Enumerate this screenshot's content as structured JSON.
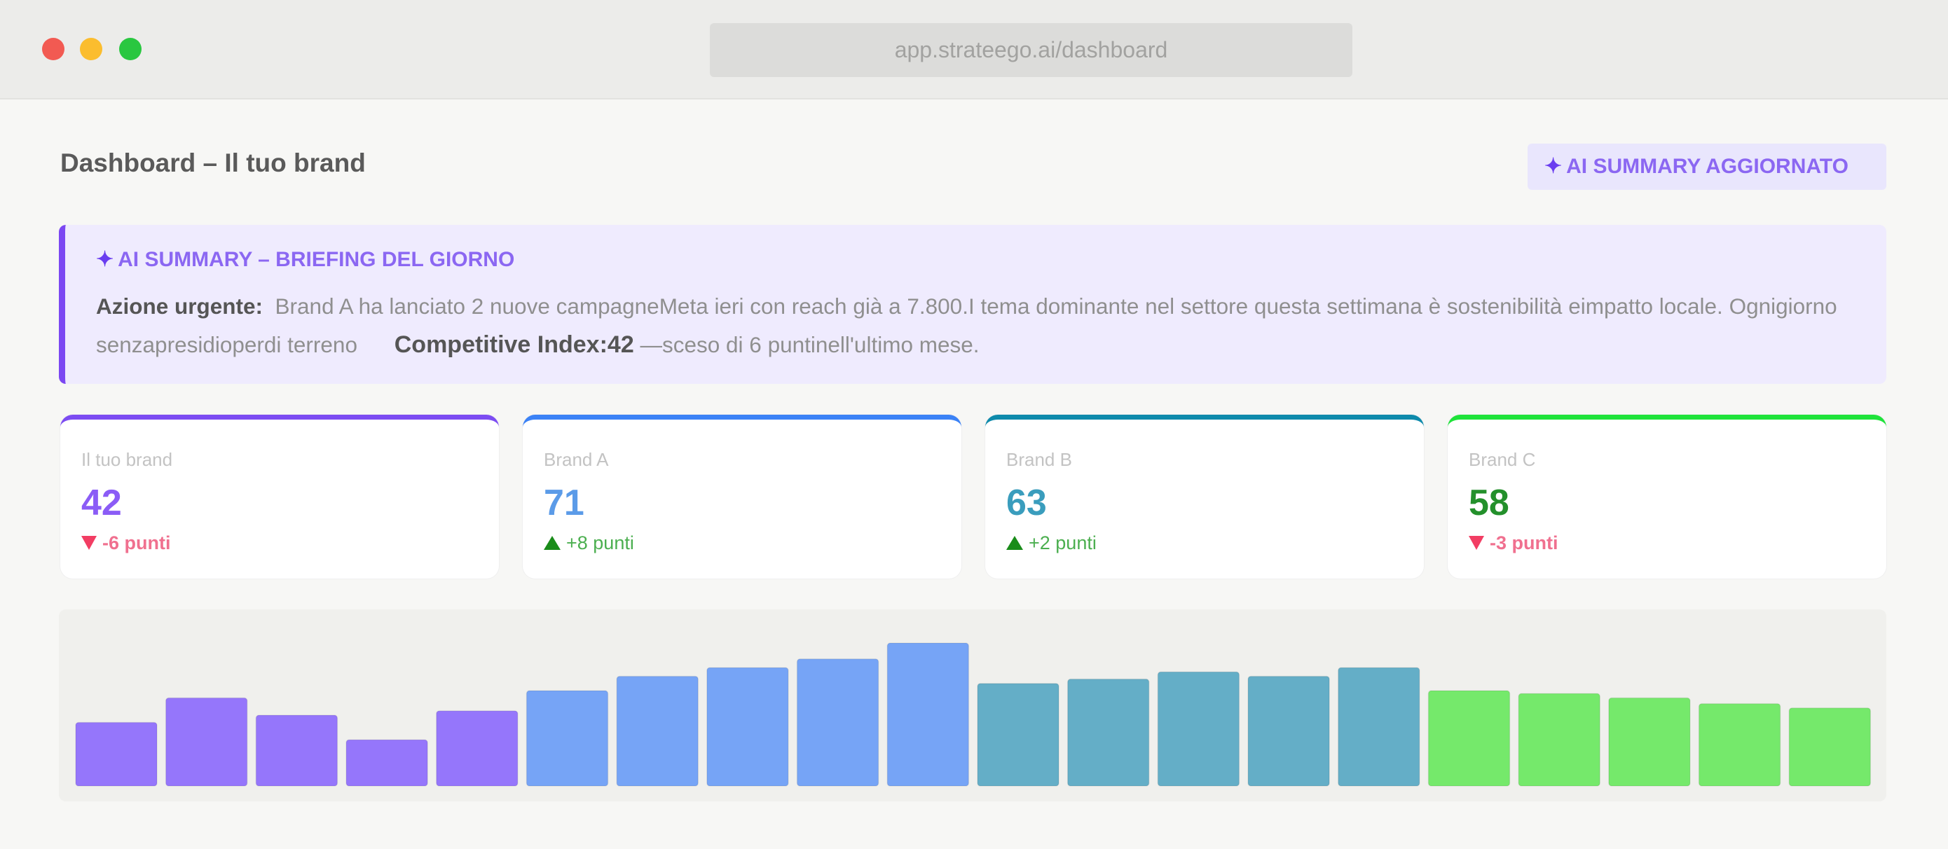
{
  "browser": {
    "url": "app.strateego.ai/dashboard"
  },
  "header": {
    "title": "Dashboard – Il tuo brand",
    "badge_icon": "✦",
    "badge_label": "AI SUMMARY AGGIORNATO"
  },
  "summary": {
    "icon": "✦",
    "title": "AI SUMMARY – BRIEFING DEL GIORNO",
    "urgent_label": "Azione urgente:",
    "text": "Brand A ha lanciato 2 nuove campagneMeta ieri con reach già a 7.800.I tema dominante nel settore questa settimana è sostenibilità eimpatto locale. Ognigiorno senzapresidioperdi terreno",
    "index_label": "Competitive Index:42",
    "index_text": "—sceso di 6 puntinell'ultimo mese."
  },
  "cards": [
    {
      "label": "Il tuo brand",
      "value": "42",
      "delta": "-6 punti",
      "direction": "down",
      "color": "#7c4cf2",
      "value_color": "#8b5cf6",
      "delta_color": "#f0708f"
    },
    {
      "label": "Brand A",
      "value": "71",
      "delta": "+8 punti",
      "direction": "up",
      "color": "#3b82f6",
      "value_color": "#5b9be8",
      "delta_color": "#4caf50"
    },
    {
      "label": "Brand B",
      "value": "63",
      "delta": "+2 punti",
      "direction": "up",
      "color": "#0e8aab",
      "value_color": "#3a9dbd",
      "delta_color": "#4caf50"
    },
    {
      "label": "Brand C",
      "value": "58",
      "delta": "-3 punti",
      "direction": "down",
      "color": "#1fe33a",
      "value_color": "#23902b",
      "delta_color": "#f0708f"
    }
  ],
  "chart_data": {
    "type": "bar",
    "ylim": [
      0,
      100
    ],
    "values": [
      44,
      61,
      49,
      32,
      52,
      66,
      76,
      82,
      88,
      99,
      71,
      74,
      79,
      76,
      82,
      66,
      64,
      61,
      57,
      54
    ],
    "colors": [
      "#9576fb",
      "#9576fb",
      "#9576fb",
      "#9576fb",
      "#9576fb",
      "#76a4f6",
      "#76a4f6",
      "#76a4f6",
      "#76a4f6",
      "#76a4f6",
      "#64aec7",
      "#64aec7",
      "#64aec7",
      "#64aec7",
      "#64aec7",
      "#75e96b",
      "#75e96b",
      "#75e96b",
      "#75e96b",
      "#75e96b"
    ]
  }
}
